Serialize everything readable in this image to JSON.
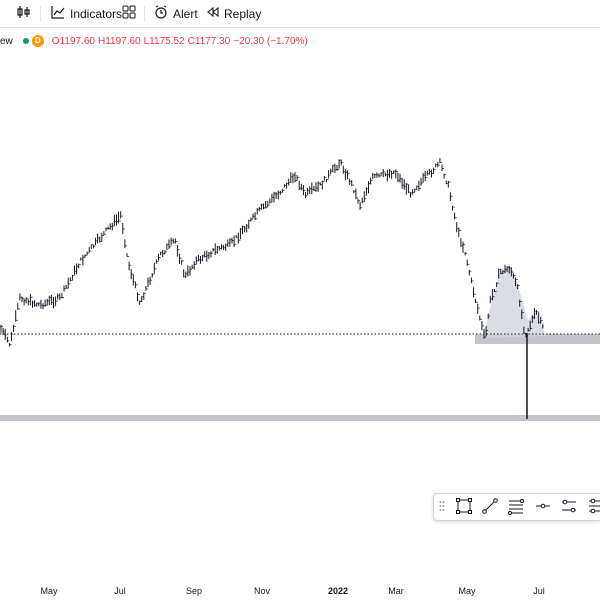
{
  "toolbar": {
    "indicators_label": "Indicators",
    "alert_label": "Alert",
    "replay_label": "Replay"
  },
  "legend": {
    "title_fragment": "ew",
    "interval_badge": "D",
    "open": "O1197.60",
    "high": "H1197.60",
    "low": "L1175.52",
    "close": "C1177.30",
    "change": "−20.30 (−1.70%)",
    "colors": {
      "down": "#f23645",
      "dot": "#089981",
      "badge": "#ff9800"
    }
  },
  "icons": {
    "toolbar": [
      "candles-icon",
      "indicators-icon",
      "templates-icon",
      "alert-icon",
      "replay-icon"
    ],
    "drawing_toolbar": [
      "drag-handle-icon",
      "rectangle-icon",
      "trend-line-icon",
      "fib-retracement-icon",
      "horizontal-ray-icon",
      "parallel-channel-icon",
      "regression-icon"
    ]
  },
  "chart_data": {
    "type": "bar",
    "x_tick_labels": [
      "May",
      "Jul",
      "Sep",
      "Nov",
      "2022",
      "Mar",
      "May",
      "Jul"
    ],
    "series_color": "#131722",
    "support_zone_color": "#b2b5be",
    "dotted_line_color": "#131722",
    "grid": false
  }
}
